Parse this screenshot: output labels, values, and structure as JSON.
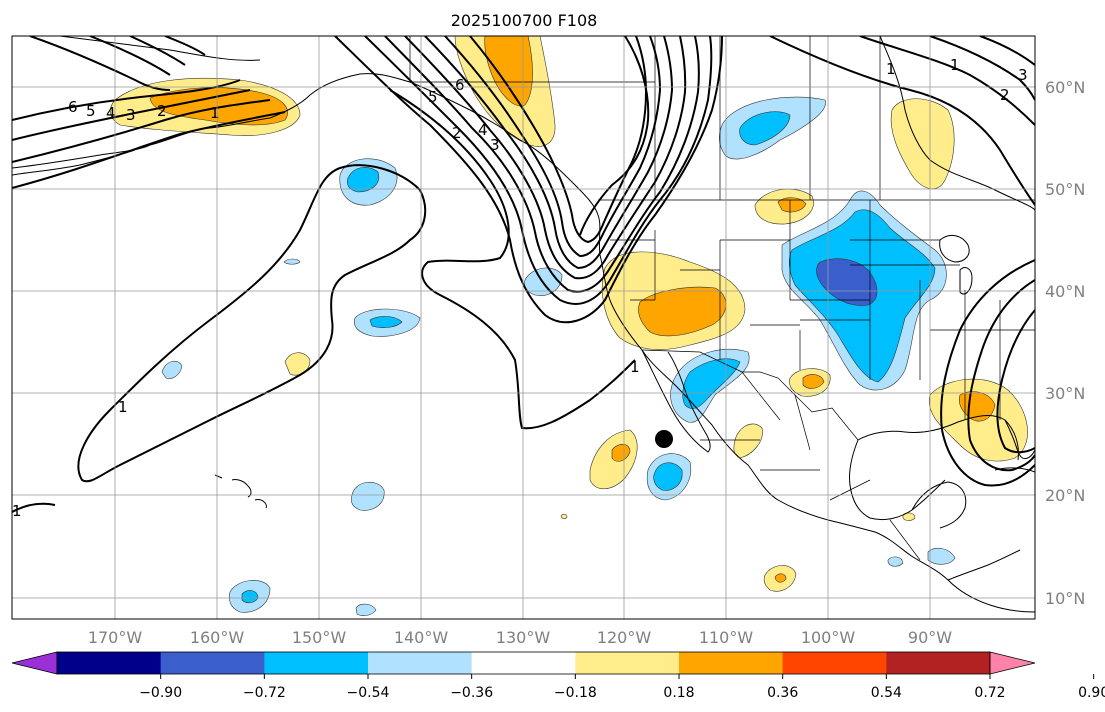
{
  "title": "2025100700 F108",
  "longitude_labels": [
    "170°W",
    "160°W",
    "150°W",
    "140°W",
    "130°W",
    "120°W",
    "110°W",
    "100°W",
    "90°W"
  ],
  "latitude_labels": [
    "60°N",
    "50°N",
    "40°N",
    "30°N",
    "20°N",
    "10°N"
  ],
  "colorbar": {
    "tick_labels": [
      "−0.90",
      "−0.72",
      "−0.54",
      "−0.36",
      "−0.18",
      "0.18",
      "0.36",
      "0.54",
      "0.72",
      "0.90"
    ],
    "colors": [
      "#9b30d9",
      "#00008b",
      "#3a5fcd",
      "#00bfff",
      "#b0e2ff",
      "#ffffff",
      "#ffec8b",
      "#ffa500",
      "#ff4500",
      "#b22222",
      "#ff82ab"
    ]
  },
  "contour_labels": {
    "alaska": [
      "6",
      "5",
      "4",
      "3",
      "2",
      "1"
    ],
    "bc_coast": [
      "6",
      "5",
      "4",
      "3",
      "2"
    ],
    "pacific": [
      "1",
      "1",
      "1"
    ],
    "canada": [
      "1",
      "1",
      "2",
      "3"
    ],
    "marker": "forecast-point"
  }
}
